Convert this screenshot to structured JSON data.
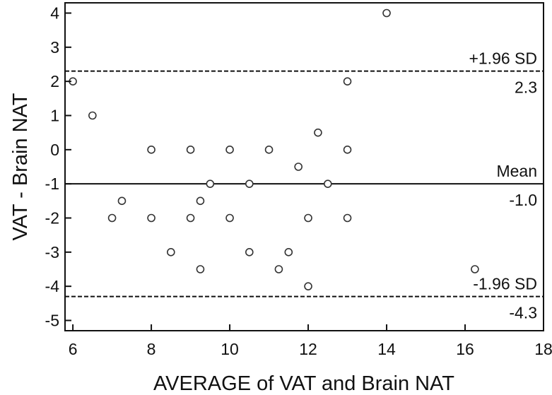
{
  "chart_data": {
    "type": "scatter",
    "title": "",
    "xlabel": "AVERAGE of VAT and Brain NAT",
    "ylabel": "VAT - Brain NAT",
    "xlim": [
      5.8,
      18
    ],
    "ylim": [
      -5.3,
      4.3
    ],
    "x_ticks": [
      "6",
      "8",
      "10",
      "12",
      "14",
      "16",
      "18"
    ],
    "y_ticks": [
      "4",
      "3",
      "2",
      "1",
      "0",
      "-1",
      "-2",
      "-3",
      "-4",
      "-5"
    ],
    "grid": false,
    "points": [
      {
        "x": 6.0,
        "y": 2.0
      },
      {
        "x": 6.5,
        "y": 1.0
      },
      {
        "x": 7.0,
        "y": -2.0
      },
      {
        "x": 7.25,
        "y": -1.5
      },
      {
        "x": 8.0,
        "y": 0.0
      },
      {
        "x": 8.0,
        "y": -2.0
      },
      {
        "x": 8.5,
        "y": -3.0
      },
      {
        "x": 9.0,
        "y": 0.0
      },
      {
        "x": 9.0,
        "y": -2.0
      },
      {
        "x": 9.25,
        "y": -1.5
      },
      {
        "x": 9.25,
        "y": -3.5
      },
      {
        "x": 9.5,
        "y": -1.0
      },
      {
        "x": 10.0,
        "y": 0.0
      },
      {
        "x": 10.0,
        "y": -2.0
      },
      {
        "x": 10.5,
        "y": -1.0
      },
      {
        "x": 10.5,
        "y": -3.0
      },
      {
        "x": 11.0,
        "y": 0.0
      },
      {
        "x": 11.25,
        "y": -3.5
      },
      {
        "x": 11.5,
        "y": -3.0
      },
      {
        "x": 11.75,
        "y": -0.5
      },
      {
        "x": 12.0,
        "y": -2.0
      },
      {
        "x": 12.0,
        "y": -4.0
      },
      {
        "x": 12.25,
        "y": 0.5
      },
      {
        "x": 12.5,
        "y": -1.0
      },
      {
        "x": 13.0,
        "y": 2.0
      },
      {
        "x": 13.0,
        "y": 0.0
      },
      {
        "x": 13.0,
        "y": -2.0
      },
      {
        "x": 14.0,
        "y": 4.0
      },
      {
        "x": 16.25,
        "y": -3.5
      }
    ],
    "reference_lines": [
      {
        "name": "+1.96 SD",
        "value": 2.3,
        "value_label": "2.3",
        "style": "dashed"
      },
      {
        "name": "Mean",
        "value": -1.0,
        "value_label": "-1.0",
        "style": "solid"
      },
      {
        "name": "-1.96 SD",
        "value": -4.3,
        "value_label": "-4.3",
        "style": "dashed"
      }
    ]
  }
}
